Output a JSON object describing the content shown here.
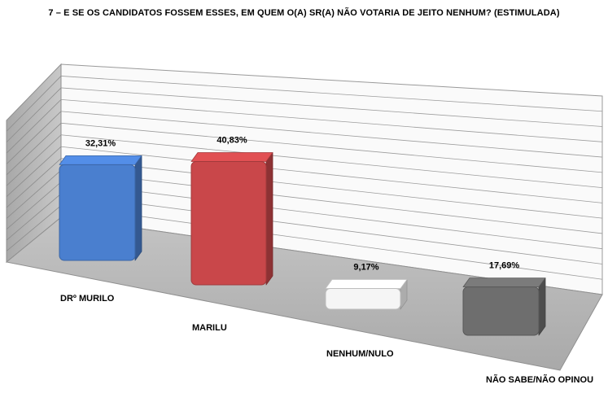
{
  "chart_data": {
    "type": "bar",
    "title": "7 – E SE OS CANDIDATOS FOSSEM ESSES, EM QUEM O(A) SR(A) NÃO VOTARIA DE JEITO NENHUM? (ESTIMULADA)",
    "categories": [
      "DRº MURILO",
      "MARILU",
      "NENHUM/NULO",
      "NÃO SABE/NÃO OPINOU"
    ],
    "values": [
      32.31,
      40.83,
      9.17,
      17.69
    ],
    "value_labels": [
      "32,31%",
      "40,83%",
      "9,17%",
      "17,69%"
    ],
    "colors": [
      "#4a7fcf",
      "#c9474a",
      "#f5f5f5",
      "#6e6e6e"
    ],
    "ylim": [
      0,
      50
    ],
    "grid": true,
    "style": "3d"
  }
}
